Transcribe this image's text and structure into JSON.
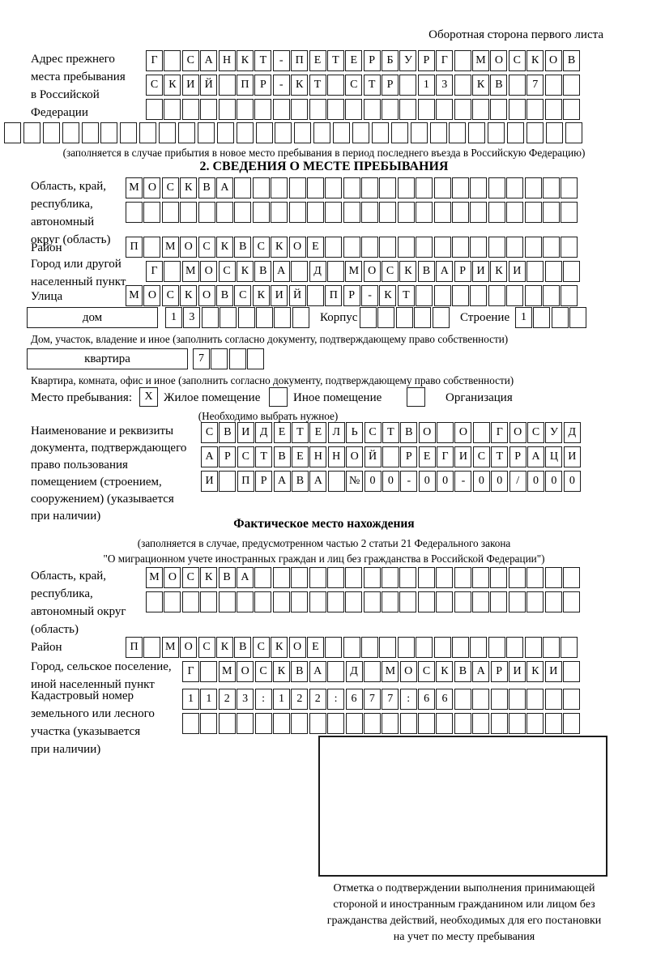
{
  "colors": {
    "ink": "#000000",
    "paper": "#ffffff",
    "box_border": "#1b1b1b"
  },
  "page": {
    "header_note": "Оборотная сторона первого листа"
  },
  "section1": {
    "prev_address": {
      "label_lines": [
        "Адрес прежнего",
        "места пребывания",
        "в Российской",
        "Федерации"
      ],
      "row1": "Г САНКТ-ПЕТЕРБУРГ МОСКОВ",
      "row2": "СКИЙ ПР-КТ СТР 13 КВ 7  ",
      "row3": "                        ",
      "row4": "                              ",
      "note": "(заполняется в случае прибытия в новое место пребывания в период последнего въезда в Российскую Федерацию)"
    },
    "title": "2. СВЕДЕНИЯ О МЕСТЕ ПРЕБЫВАНИЯ",
    "region": {
      "label_lines": [
        "Область, край,",
        "республика,",
        "автономный",
        "округ (область)"
      ],
      "row1": "МОСКВА                   ",
      "row2": "                         "
    },
    "district": {
      "label": "Район",
      "row": "П МОСКВСКОЕ              "
    },
    "city": {
      "label_lines": [
        "Город или другой",
        "населенный пункт"
      ],
      "row": "Г МОСКВА Д МОСКВАРИКИ   "
    },
    "street": {
      "label": "Улица",
      "row": "МОСКОВСКИЙ ПР-КТ         "
    },
    "house": {
      "box_label": "дом",
      "cells": "13      ",
      "korpus_label": "Корпус",
      "korpus_cells": "     ",
      "stroenie_label": "Строение",
      "stroenie_cells": "1   ",
      "note": "Дом, участок, владение и иное (заполнить согласно документу, подтверждающему право собственности)"
    },
    "apartment": {
      "box_label": "квартира",
      "cells": "7   ",
      "note": "Квартира, комната, офис и иное (заполнить согласно документу, подтверждающему право собственности)"
    },
    "stay_type": {
      "label": "Место пребывания:",
      "options": [
        {
          "label": "Жилое помещение",
          "mark": "X"
        },
        {
          "label": "Иное помещение",
          "mark": ""
        },
        {
          "label": "Организация",
          "mark": ""
        }
      ],
      "hint": "(Необходимо выбрать нужное)"
    },
    "document": {
      "label_lines": [
        "Наименование и реквизиты",
        "документа, подтверждающего",
        "право пользования",
        "помещением (строением,",
        "сооружением) (указывается",
        "при наличии)"
      ],
      "row1": "СВИДЕТЕЛЬСТВО О ГОСУД",
      "row2": "АРСТВЕННОЙ РЕГИСТРАЦИ",
      "row3": "И ПРАВА №00-00-00/000"
    }
  },
  "section2": {
    "title": "Фактическое место нахождения",
    "note_lines": [
      "(заполняется в случае, предусмотренном частью 2 статьи 21 Федерального закона",
      "\"О миграционном учете иностранных граждан и лиц без гражданства в Российской Федерации\")"
    ],
    "region": {
      "label_lines": [
        "Область, край,",
        "республика,",
        "автономный округ",
        "(область)"
      ],
      "row1": "МОСКВА                  ",
      "row2": "                        "
    },
    "district": {
      "label": "Район",
      "row": "П МОСКВСКОЕ              "
    },
    "city": {
      "label_lines": [
        "Город, сельское поселение,",
        "иной населенный пункт"
      ],
      "row": "Г МОСКВА Д МОСКВАРИКИ "
    },
    "cadastral": {
      "label_lines": [
        "Кадастровый номер",
        "земельного или лесного",
        "участка (указывается",
        "при наличии)"
      ],
      "row1": "1123:122:677:66       ",
      "row2": "                      "
    },
    "stamp": {
      "caption_lines": [
        "Отметка о подтверждении выполнения принимающей",
        "стороной и иностранным гражданином или лицом без",
        "гражданства действий, необходимых для его постановки",
        "на учет по месту пребывания"
      ]
    }
  }
}
